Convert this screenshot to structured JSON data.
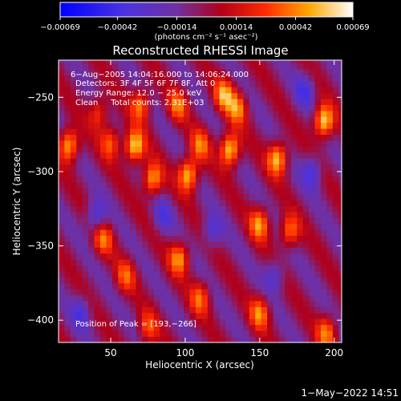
{
  "chart_data": {
    "type": "heatmap",
    "title": "Reconstructed RHESSI Image",
    "xlabel": "Heliocentric X (arcsec)",
    "ylabel": "Heliocentric Y (arcsec)",
    "xlim": [
      15,
      205
    ],
    "ylim": [
      -415,
      -225
    ],
    "x_ticks": [
      50,
      100,
      150,
      200
    ],
    "y_ticks": [
      -250,
      -300,
      -350,
      -400
    ],
    "x_tick_labels": [
      "50",
      "100",
      "150",
      "200"
    ],
    "y_tick_labels": [
      "−250",
      "−300",
      "−350",
      "−400"
    ],
    "colorbar": {
      "range": [
        -0.00069,
        0.00069
      ],
      "ticks": [
        -0.00069,
        -0.00042,
        -0.00014,
        0.00014,
        0.00042,
        0.00069
      ],
      "tick_labels": [
        "−0.00069",
        "−0.00042",
        "−0.00014",
        "0.00014",
        "0.00042",
        "0.00069"
      ],
      "units_label": "(photons cm⁻² s⁻¹ asec⁻²)"
    },
    "annotations": [
      "6−Aug−2005 14:04:16.000 to 14:06:24.000",
      "Detectors: 3F 4F 5F 6F 7F 8F, Att 0",
      "Energy Range: 12.0 − 25.0 keV",
      "Clean     Total counts: 2.31E+03"
    ],
    "peak_label": "Position of Peak = [193,−266]",
    "peak": [
      193,
      -266
    ],
    "hotspots": [
      {
        "x": 22,
        "y": -282,
        "value": 0.0006
      },
      {
        "x": 42,
        "y": -260,
        "value": 0.00035
      },
      {
        "x": 50,
        "y": -280,
        "value": 0.0004
      },
      {
        "x": 66,
        "y": -283,
        "value": 0.00065
      },
      {
        "x": 70,
        "y": -255,
        "value": 0.00045
      },
      {
        "x": 78,
        "y": -305,
        "value": 0.00055
      },
      {
        "x": 95,
        "y": -255,
        "value": 0.0004
      },
      {
        "x": 102,
        "y": -302,
        "value": 0.00062
      },
      {
        "x": 110,
        "y": -282,
        "value": 0.0004
      },
      {
        "x": 130,
        "y": -285,
        "value": 0.00068
      },
      {
        "x": 126,
        "y": -248,
        "value": 0.0005
      },
      {
        "x": 135,
        "y": -257,
        "value": 0.00045
      },
      {
        "x": 162,
        "y": -291,
        "value": 0.0006
      },
      {
        "x": 193,
        "y": -266,
        "value": 0.00069
      },
      {
        "x": 150,
        "y": -335,
        "value": 0.0005
      },
      {
        "x": 170,
        "y": -340,
        "value": 0.00045
      },
      {
        "x": 96,
        "y": -358,
        "value": 0.0005
      },
      {
        "x": 45,
        "y": -345,
        "value": 0.0004
      },
      {
        "x": 60,
        "y": -370,
        "value": 0.00035
      },
      {
        "x": 110,
        "y": -385,
        "value": 0.0004
      },
      {
        "x": 150,
        "y": -395,
        "value": 0.00045
      },
      {
        "x": 195,
        "y": -408,
        "value": 0.00045
      },
      {
        "x": 75,
        "y": -405,
        "value": 0.00035
      }
    ],
    "coldspots": [
      {
        "x": 40,
        "y": -330,
        "value": -0.00035
      },
      {
        "x": 118,
        "y": -340,
        "value": -0.0003
      },
      {
        "x": 185,
        "y": -300,
        "value": -0.00035
      },
      {
        "x": 160,
        "y": -370,
        "value": -0.0003
      },
      {
        "x": 30,
        "y": -395,
        "value": -0.0003
      },
      {
        "x": 85,
        "y": -330,
        "value": -0.00025
      },
      {
        "x": 180,
        "y": -245,
        "value": -0.0003
      }
    ]
  },
  "footer": {
    "timestamp": "1−May−2022 14:51"
  }
}
